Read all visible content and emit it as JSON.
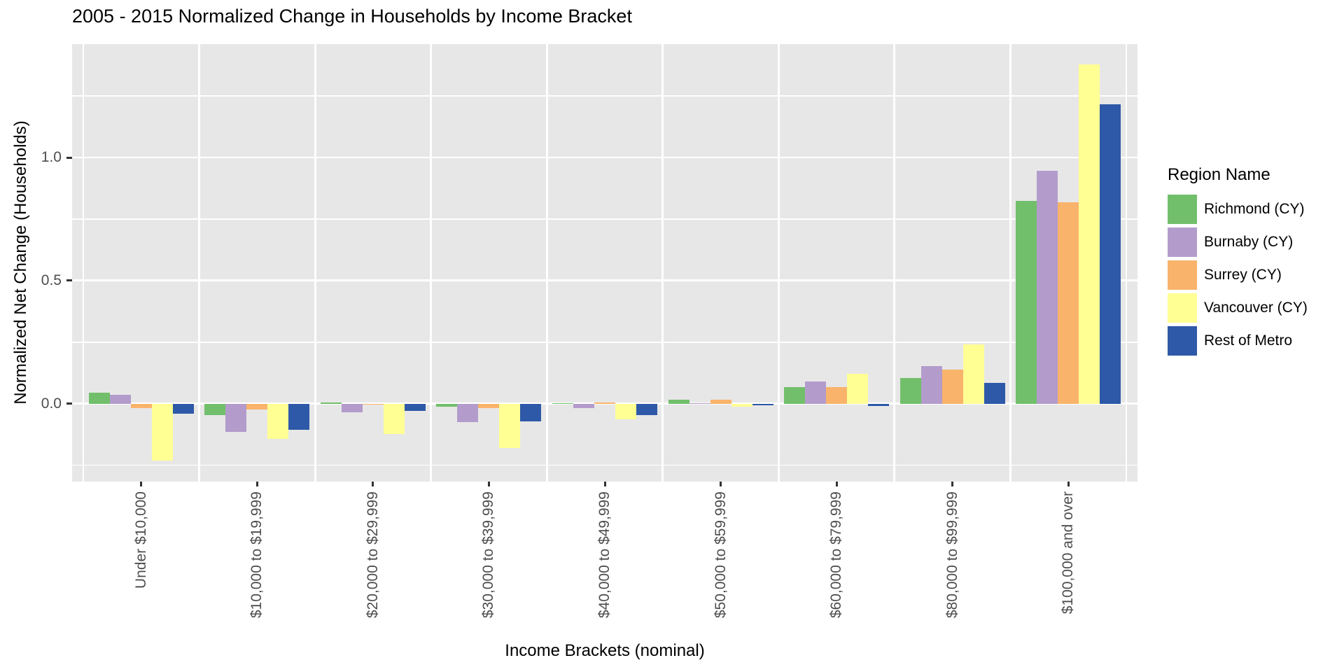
{
  "chart_data": {
    "type": "bar",
    "title": "2005 - 2015 Normalized Change in Households by Income Bracket",
    "xlabel": "Income Brackets (nominal)",
    "ylabel": "Normalized Net Change (Households)",
    "legend_title": "Region Name",
    "legend_position": "right",
    "grid": true,
    "panel_bg_color": "#E7E7E7",
    "grid_color": "#FFFFFF",
    "tick_label_color": "#4D4D4D",
    "categories": [
      "Under $10,000",
      "$10,000 to $19,999",
      "$20,000 to $29,999",
      "$30,000 to $39,999",
      "$40,000 to $49,999",
      "$50,000 to $59,999",
      "$60,000 to $79,999",
      "$80,000 to $99,999",
      "$100,000 and over"
    ],
    "series": [
      {
        "name": "Richmond (CY)",
        "color": "#72BF6B",
        "values": [
          0.046,
          -0.047,
          0.005,
          -0.012,
          0.001,
          0.017,
          0.068,
          0.105,
          0.823
        ]
      },
      {
        "name": "Burnaby (CY)",
        "color": "#B39CCB",
        "values": [
          0.035,
          -0.114,
          -0.036,
          -0.074,
          -0.017,
          0.001,
          0.09,
          0.153,
          0.946
        ]
      },
      {
        "name": "Surrey (CY)",
        "color": "#F9B36B",
        "values": [
          -0.018,
          -0.024,
          -0.005,
          -0.018,
          0.006,
          0.017,
          0.068,
          0.138,
          0.817
        ]
      },
      {
        "name": "Vancouver (CY)",
        "color": "#FFFF94",
        "values": [
          -0.232,
          -0.142,
          -0.123,
          -0.18,
          -0.064,
          -0.011,
          0.121,
          0.242,
          1.379
        ]
      },
      {
        "name": "Rest of Metro",
        "color": "#2E59A8",
        "values": [
          -0.04,
          -0.107,
          -0.03,
          -0.071,
          -0.045,
          -0.007,
          -0.01,
          0.085,
          1.216
        ]
      }
    ],
    "ylim": [
      -0.316,
      1.461
    ],
    "yticks": [
      0.0,
      0.5,
      1.0
    ],
    "ytick_labels": [
      "0.0",
      "0.5",
      "1.0"
    ],
    "y_minor_ticks": [
      -0.25,
      0.25,
      0.75,
      1.25
    ]
  }
}
